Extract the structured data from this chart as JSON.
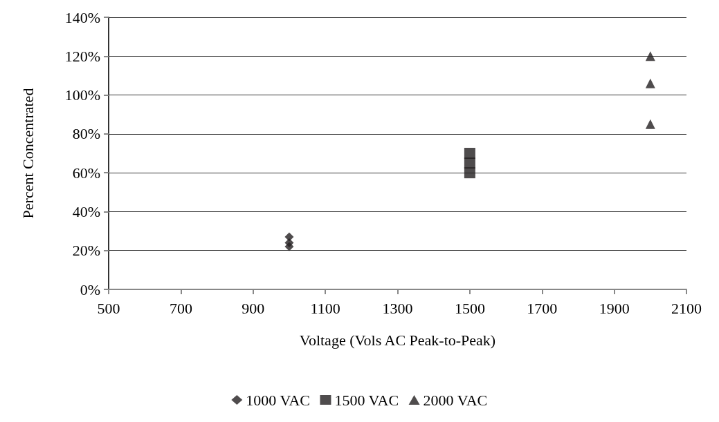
{
  "chart_data": {
    "type": "scatter",
    "xlabel": "Voltage (Vols AC Peak-to-Peak)",
    "ylabel": "Percent Concentrated",
    "series": [
      {
        "name": "1000 VAC",
        "color": "#231f20",
        "marker": "diamond",
        "x": [
          1000,
          1000,
          1000
        ],
        "values": [
          27,
          24,
          22
        ]
      },
      {
        "name": "1500 VAC",
        "color": "#231f20",
        "marker": "square",
        "x": [
          1500,
          1500,
          1500
        ],
        "values": [
          70,
          65,
          60
        ]
      },
      {
        "name": "2000 VAC",
        "color": "#231f20",
        "marker": "triangle",
        "x": [
          2000,
          2000,
          2000
        ],
        "values": [
          120,
          106,
          85
        ]
      }
    ],
    "xlim": [
      500,
      2100
    ],
    "xticks": [
      500,
      700,
      900,
      1100,
      1300,
      1500,
      1700,
      1900,
      2100
    ],
    "ylim": [
      0,
      140
    ],
    "yticks": [
      {
        "value": 0,
        "label": "0%"
      },
      {
        "value": 20,
        "label": "20%"
      },
      {
        "value": 40,
        "label": "40%"
      },
      {
        "value": 60,
        "label": "60%"
      },
      {
        "value": 80,
        "label": "80%"
      },
      {
        "value": 100,
        "label": "100%"
      },
      {
        "value": 120,
        "label": "120%"
      },
      {
        "value": 140,
        "label": "140%"
      }
    ],
    "grid": "y",
    "legend": "bottom"
  }
}
